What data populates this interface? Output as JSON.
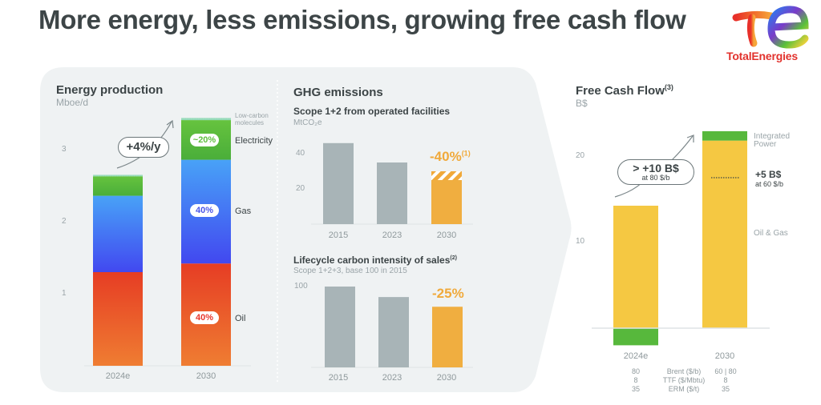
{
  "slide": {
    "title": "More energy, less emissions, growing free cash flow",
    "logo_text": "TotalEnergies",
    "brand_color": "#e2322d"
  },
  "chart_data": [
    {
      "id": "energy",
      "type": "bar",
      "stacked": true,
      "title": "Energy production",
      "unit": "Mboe/d",
      "categories": [
        "2024e",
        "2030"
      ],
      "yticks": [
        "1",
        "2",
        "3"
      ],
      "ylim": [
        0,
        3.6
      ],
      "series": [
        {
          "name": "Oil",
          "values": [
            1.3,
            1.42
          ],
          "color": "#ea4a24",
          "share_2030": "40%"
        },
        {
          "name": "Gas",
          "values": [
            1.06,
            1.44
          ],
          "color": "#3f7bf5",
          "share_2030": "40%"
        },
        {
          "name": "Electricity",
          "values": [
            0.27,
            0.55
          ],
          "color": "#57b83c",
          "share_2030": "~20%"
        },
        {
          "name": "Low-carbon molecules",
          "values": [
            0.02,
            0.03
          ],
          "color": "#6fd0a0"
        }
      ],
      "annotation": "+4%/y"
    },
    {
      "id": "ghg",
      "type": "bar",
      "section_title": "GHG emissions",
      "title": "Scope 1+2 from operated facilities",
      "unit": "MtCO₂e",
      "categories": [
        "2015",
        "2023",
        "2030"
      ],
      "values": [
        46,
        35,
        25
      ],
      "target_range_top": 30,
      "yticks": [
        "20",
        "40"
      ],
      "ylim": [
        0,
        55
      ],
      "annotation": "-40%",
      "annotation_note": "(1)"
    },
    {
      "id": "lifecycle",
      "type": "bar",
      "title": "Lifecycle carbon intensity of sales",
      "title_note": "(2)",
      "subtitle": "Scope 1+2+3, base 100 in 2015",
      "categories": [
        "2015",
        "2023",
        "2030"
      ],
      "values": [
        100,
        87,
        75
      ],
      "yticks": [
        "100"
      ],
      "ylim": [
        0,
        110
      ],
      "annotation": "-25%"
    },
    {
      "id": "fcf",
      "type": "bar",
      "stacked": true,
      "title": "Free Cash Flow",
      "title_note": "(3)",
      "unit": "B$",
      "categories": [
        "2024e",
        "2030"
      ],
      "yticks": [
        "10",
        "20"
      ],
      "ylim": [
        -3,
        24
      ],
      "series": [
        {
          "name": "Oil & Gas",
          "values": [
            14.3,
            21.9
          ],
          "color": "#f5c842"
        },
        {
          "name": "Integrated Power",
          "values": [
            -2.0,
            1.1
          ],
          "color": "#57b83c"
        }
      ],
      "annotation_main": "> +10 B$",
      "annotation_main_sub": "at 80 $/b",
      "annotation_side": "+5 B$",
      "annotation_side_sub": "at 60 $/b",
      "assumptions": [
        {
          "label": "Brent ($/b)",
          "v2024": "80",
          "v2030": "60  |  80"
        },
        {
          "label": "TTF ($/Mbtu)",
          "v2024": "8",
          "v2030": "8"
        },
        {
          "label": "ERM ($/t)",
          "v2024": "35",
          "v2030": "35"
        }
      ]
    }
  ]
}
